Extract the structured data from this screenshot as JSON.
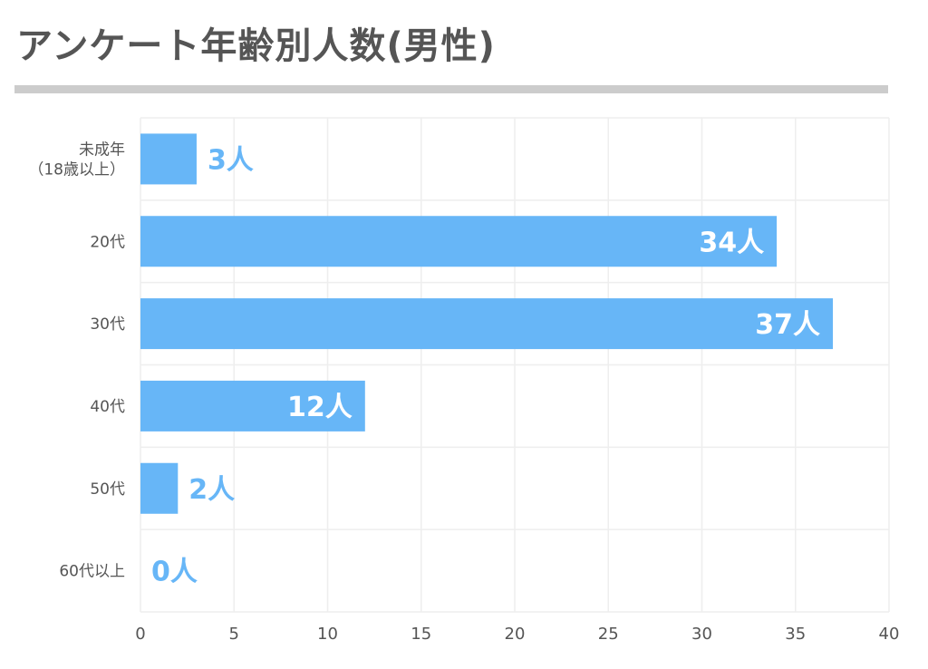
{
  "title": "アンケート年齢別人数(男性)",
  "chart_data": {
    "type": "bar",
    "orientation": "horizontal",
    "title": "アンケート年齢別人数(男性)",
    "categories": [
      "未成年\n（18歳以上）",
      "20代",
      "30代",
      "40代",
      "50代",
      "60代以上"
    ],
    "values": [
      3,
      34,
      37,
      12,
      2,
      0
    ],
    "data_labels": [
      "3人",
      "34人",
      "37人",
      "12人",
      "2人",
      "0人"
    ],
    "xlim": [
      0,
      40
    ],
    "xticks": [
      "0",
      "5",
      "10",
      "15",
      "20",
      "25",
      "30",
      "35",
      "40"
    ],
    "xlabel": "",
    "ylabel": "",
    "grid": true,
    "legend": "none",
    "colors": {
      "bar": "#67b6f7",
      "label_inside": "#ffffff",
      "label_outside": "#67b6f7",
      "grid": "#eeeeee",
      "title_rule": "#cccccc"
    }
  }
}
